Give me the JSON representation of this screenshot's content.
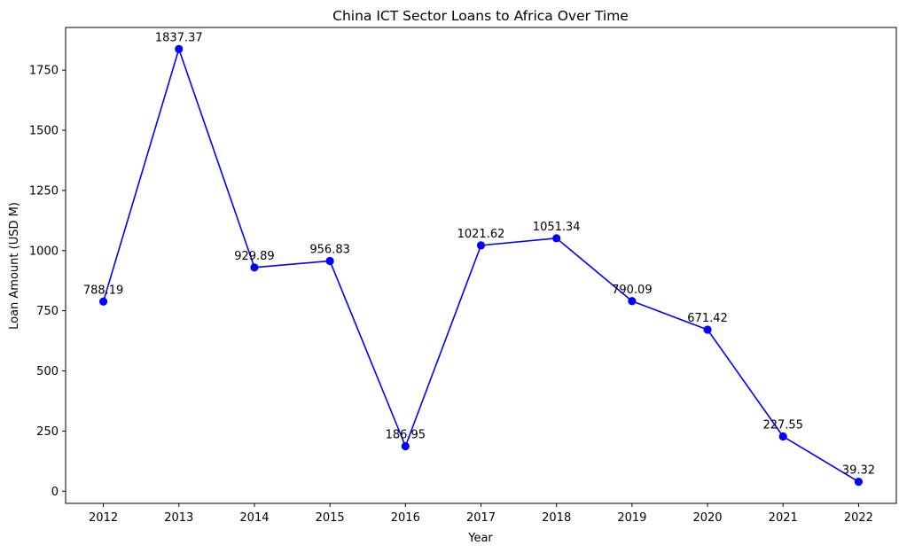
{
  "chart_data": {
    "type": "line",
    "title": "China ICT Sector Loans to Africa Over Time",
    "xlabel": "Year",
    "ylabel": "Loan Amount (USD M)",
    "x": [
      2012,
      2013,
      2014,
      2015,
      2016,
      2017,
      2018,
      2019,
      2020,
      2021,
      2022
    ],
    "series": [
      {
        "values": [
          788.19,
          1837.37,
          929.89,
          956.83,
          186.95,
          1021.62,
          1051.34,
          790.09,
          671.42,
          227.55,
          39.32
        ],
        "data_labels": [
          "788.19",
          "1837.37",
          "929.89",
          "956.83",
          "186.95",
          "1021.62",
          "1051.34",
          "790.09",
          "671.42",
          "227.55",
          "39.32"
        ],
        "color": "#0000ff",
        "marker": "circle"
      }
    ],
    "x_ticks": [
      "2012",
      "2013",
      "2014",
      "2015",
      "2016",
      "2017",
      "2018",
      "2019",
      "2020",
      "2021",
      "2022"
    ],
    "y_ticks": [
      0,
      250,
      500,
      750,
      1000,
      1250,
      1500,
      1750
    ],
    "y_tick_labels": [
      "0",
      "250",
      "500",
      "750",
      "1000",
      "1250",
      "1500",
      "1750"
    ],
    "xlim": [
      2011.5,
      2022.5
    ],
    "ylim": [
      -50.58,
      1927.27
    ],
    "grid": false,
    "legend": "none"
  }
}
